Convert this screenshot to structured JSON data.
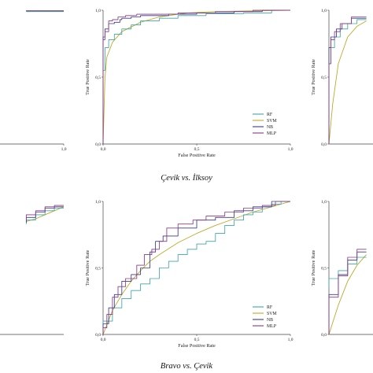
{
  "figure": {
    "captions": [
      "Çevik vs. İlksoy",
      "Bravo vs. Çevik"
    ]
  },
  "colors": {
    "RF": "#3fa6a6",
    "SVM": "#b8ad2a",
    "NB": "#3b3a8c",
    "MLP": "#8a3a86",
    "axis": "#444444"
  },
  "chart_data": [
    {
      "type": "line",
      "title": "",
      "xlabel": "False Positive Rate",
      "ylabel": "True Positive Rate",
      "xlim": [
        0,
        1
      ],
      "ylim": [
        0,
        1
      ],
      "x_ticks": [
        "0,0",
        "0,5",
        "1,0"
      ],
      "y_ticks": [
        "0,0",
        "0,5",
        "1,0"
      ],
      "legend": [
        "RF",
        "SVM",
        "NB",
        "MLP"
      ],
      "series": [
        {
          "name": "RF",
          "points": [
            [
              0,
              0
            ],
            [
              0.01,
              0.55
            ],
            [
              0.03,
              0.72
            ],
            [
              0.06,
              0.78
            ],
            [
              0.1,
              0.82
            ],
            [
              0.15,
              0.86
            ],
            [
              0.2,
              0.89
            ],
            [
              0.3,
              0.92
            ],
            [
              0.4,
              0.94
            ],
            [
              0.55,
              0.96
            ],
            [
              0.75,
              0.975
            ],
            [
              0.9,
              0.98
            ],
            [
              0.93,
              1.0
            ],
            [
              1,
              1
            ]
          ]
        },
        {
          "name": "SVM",
          "points": [
            [
              0,
              0
            ],
            [
              0.01,
              0.5
            ],
            [
              0.02,
              0.65
            ],
            [
              0.05,
              0.76
            ],
            [
              0.1,
              0.84
            ],
            [
              0.2,
              0.91
            ],
            [
              0.3,
              0.95
            ],
            [
              0.45,
              0.98
            ],
            [
              0.6,
              0.99
            ],
            [
              1,
              1
            ]
          ]
        },
        {
          "name": "NB",
          "points": [
            [
              0,
              0
            ],
            [
              0.01,
              0.8
            ],
            [
              0.03,
              0.86
            ],
            [
              0.06,
              0.9
            ],
            [
              0.09,
              0.91
            ],
            [
              0.1,
              0.93
            ],
            [
              0.15,
              0.94
            ],
            [
              0.2,
              0.95
            ],
            [
              0.35,
              0.96
            ],
            [
              0.5,
              0.97
            ],
            [
              0.7,
              0.98
            ],
            [
              0.85,
              0.99
            ],
            [
              1,
              1
            ]
          ]
        },
        {
          "name": "MLP",
          "points": [
            [
              0,
              0
            ],
            [
              0.01,
              0.78
            ],
            [
              0.03,
              0.84
            ],
            [
              0.05,
              0.92
            ],
            [
              0.08,
              0.93
            ],
            [
              0.12,
              0.95
            ],
            [
              0.18,
              0.96
            ],
            [
              0.25,
              0.97
            ],
            [
              0.4,
              0.97
            ],
            [
              0.6,
              0.98
            ],
            [
              0.8,
              0.99
            ],
            [
              1,
              1
            ]
          ]
        }
      ]
    },
    {
      "type": "line",
      "title": "",
      "xlabel": "False Positive Rate",
      "ylabel": "True Positive Rate",
      "xlim": [
        0,
        1
      ],
      "ylim": [
        0,
        1
      ],
      "x_ticks": [
        "0,0",
        "0,5",
        "1,0"
      ],
      "y_ticks": [
        "0,0",
        "0,5",
        "1,0"
      ],
      "legend": [
        "RF",
        "SVM",
        "NB",
        "MLP"
      ],
      "series": [
        {
          "name": "RF",
          "points": [
            [
              0,
              0
            ],
            [
              0.05,
              0.1
            ],
            [
              0.1,
              0.2
            ],
            [
              0.15,
              0.27
            ],
            [
              0.2,
              0.33
            ],
            [
              0.25,
              0.38
            ],
            [
              0.3,
              0.42
            ],
            [
              0.35,
              0.5
            ],
            [
              0.4,
              0.55
            ],
            [
              0.45,
              0.6
            ],
            [
              0.5,
              0.64
            ],
            [
              0.55,
              0.68
            ],
            [
              0.6,
              0.7
            ],
            [
              0.65,
              0.76
            ],
            [
              0.7,
              0.82
            ],
            [
              0.75,
              0.86
            ],
            [
              0.8,
              0.9
            ],
            [
              0.85,
              0.92
            ],
            [
              0.9,
              0.96
            ],
            [
              0.95,
              0.98
            ],
            [
              1,
              1
            ]
          ]
        },
        {
          "name": "SVM",
          "points": [
            [
              0,
              0
            ],
            [
              0.05,
              0.18
            ],
            [
              0.1,
              0.3
            ],
            [
              0.15,
              0.4
            ],
            [
              0.2,
              0.48
            ],
            [
              0.25,
              0.55
            ],
            [
              0.3,
              0.6
            ],
            [
              0.4,
              0.69
            ],
            [
              0.5,
              0.76
            ],
            [
              0.6,
              0.82
            ],
            [
              0.7,
              0.87
            ],
            [
              0.8,
              0.92
            ],
            [
              0.9,
              0.96
            ],
            [
              1,
              1
            ]
          ]
        },
        {
          "name": "NB",
          "points": [
            [
              0,
              0
            ],
            [
              0.03,
              0.08
            ],
            [
              0.06,
              0.2
            ],
            [
              0.1,
              0.3
            ],
            [
              0.15,
              0.4
            ],
            [
              0.2,
              0.45
            ],
            [
              0.25,
              0.5
            ],
            [
              0.28,
              0.62
            ],
            [
              0.32,
              0.7
            ],
            [
              0.4,
              0.74
            ],
            [
              0.5,
              0.8
            ],
            [
              0.6,
              0.86
            ],
            [
              0.7,
              0.88
            ],
            [
              0.8,
              0.93
            ],
            [
              0.9,
              0.96
            ],
            [
              1,
              1
            ]
          ]
        },
        {
          "name": "MLP",
          "points": [
            [
              0,
              0
            ],
            [
              0.02,
              0.05
            ],
            [
              0.05,
              0.15
            ],
            [
              0.08,
              0.28
            ],
            [
              0.12,
              0.36
            ],
            [
              0.18,
              0.42
            ],
            [
              0.22,
              0.52
            ],
            [
              0.26,
              0.6
            ],
            [
              0.3,
              0.64
            ],
            [
              0.34,
              0.7
            ],
            [
              0.4,
              0.8
            ],
            [
              0.48,
              0.83
            ],
            [
              0.55,
              0.86
            ],
            [
              0.65,
              0.89
            ],
            [
              0.75,
              0.92
            ],
            [
              0.85,
              0.95
            ],
            [
              0.92,
              0.97
            ],
            [
              1,
              1
            ]
          ]
        }
      ]
    },
    {
      "type": "line",
      "xlabel": "",
      "ylabel": "True Positive Rate",
      "xlim": [
        0,
        1
      ],
      "ylim": [
        0,
        1
      ],
      "y_ticks": [
        "0,0",
        "0,5",
        "1,0"
      ],
      "series": [
        {
          "name": "RF",
          "points": [
            [
              0,
              0
            ],
            [
              0.01,
              0.6
            ],
            [
              0.03,
              0.72
            ],
            [
              0.06,
              0.8
            ],
            [
              0.1,
              0.86
            ],
            [
              0.15,
              0.9
            ],
            [
              0.2,
              0.93
            ]
          ]
        },
        {
          "name": "SVM",
          "points": [
            [
              0,
              0
            ],
            [
              0.02,
              0.3
            ],
            [
              0.05,
              0.6
            ],
            [
              0.1,
              0.8
            ],
            [
              0.15,
              0.88
            ],
            [
              0.2,
              0.92
            ]
          ]
        },
        {
          "name": "NB",
          "points": [
            [
              0,
              0
            ],
            [
              0.01,
              0.72
            ],
            [
              0.04,
              0.8
            ],
            [
              0.07,
              0.86
            ],
            [
              0.12,
              0.9
            ],
            [
              0.2,
              0.94
            ]
          ]
        },
        {
          "name": "MLP",
          "points": [
            [
              0,
              0
            ],
            [
              0.01,
              0.6
            ],
            [
              0.03,
              0.78
            ],
            [
              0.06,
              0.84
            ],
            [
              0.12,
              0.9
            ],
            [
              0.2,
              0.95
            ]
          ]
        }
      ]
    },
    {
      "type": "line",
      "xlabel": "",
      "ylabel": "True Positive Rate",
      "xlim": [
        0,
        1
      ],
      "ylim": [
        0,
        1
      ],
      "y_ticks": [
        "0,0",
        "0,5",
        "1,0"
      ],
      "series": [
        {
          "name": "RF",
          "points": [
            [
              0,
              0.35
            ],
            [
              0.05,
              0.42
            ],
            [
              0.1,
              0.48
            ],
            [
              0.15,
              0.53
            ],
            [
              0.2,
              0.58
            ]
          ]
        },
        {
          "name": "SVM",
          "points": [
            [
              0,
              0
            ],
            [
              0.05,
              0.22
            ],
            [
              0.1,
              0.4
            ],
            [
              0.15,
              0.52
            ],
            [
              0.2,
              0.6
            ]
          ]
        },
        {
          "name": "NB",
          "points": [
            [
              0,
              0
            ],
            [
              0.05,
              0.3
            ],
            [
              0.1,
              0.45
            ],
            [
              0.15,
              0.56
            ],
            [
              0.2,
              0.62
            ]
          ]
        },
        {
          "name": "MLP",
          "points": [
            [
              0,
              0
            ],
            [
              0.05,
              0.28
            ],
            [
              0.1,
              0.44
            ],
            [
              0.15,
              0.58
            ],
            [
              0.2,
              0.64
            ]
          ]
        }
      ]
    },
    {
      "type": "line",
      "xlabel": "",
      "ylabel": "",
      "xlim": [
        0,
        1
      ],
      "ylim": [
        0,
        1
      ],
      "x_ticks": [
        "1,0"
      ],
      "series": [
        {
          "name": "RF",
          "points": [
            [
              0.8,
              0.988
            ],
            [
              0.9,
              0.99
            ],
            [
              1,
              0.99
            ]
          ]
        },
        {
          "name": "SVM",
          "points": [
            [
              0.8,
              0.99
            ],
            [
              0.9,
              0.992
            ],
            [
              1,
              0.992
            ]
          ]
        },
        {
          "name": "NB",
          "points": [
            [
              0.8,
              0.995
            ],
            [
              0.9,
              0.996
            ],
            [
              1,
              0.996
            ]
          ]
        },
        {
          "name": "MLP",
          "points": [
            [
              0.8,
              0.994
            ],
            [
              0.9,
              0.995
            ],
            [
              1,
              0.995
            ]
          ]
        }
      ]
    },
    {
      "type": "line",
      "xlabel": "",
      "ylabel": "",
      "xlim": [
        0,
        1
      ],
      "ylim": [
        0,
        1
      ],
      "series": [
        {
          "name": "RF",
          "points": [
            [
              0.8,
              0.83
            ],
            [
              0.85,
              0.86
            ],
            [
              0.9,
              0.9
            ],
            [
              0.95,
              0.93
            ],
            [
              1,
              0.95
            ]
          ]
        },
        {
          "name": "SVM",
          "points": [
            [
              0.8,
              0.85
            ],
            [
              0.85,
              0.87
            ],
            [
              0.9,
              0.9
            ],
            [
              0.95,
              0.93
            ],
            [
              1,
              0.96
            ]
          ]
        },
        {
          "name": "NB",
          "points": [
            [
              0.8,
              0.84
            ],
            [
              0.85,
              0.88
            ],
            [
              0.9,
              0.92
            ],
            [
              0.95,
              0.95
            ],
            [
              1,
              0.96
            ]
          ]
        },
        {
          "name": "MLP",
          "points": [
            [
              0.8,
              0.86
            ],
            [
              0.85,
              0.9
            ],
            [
              0.9,
              0.93
            ],
            [
              0.95,
              0.96
            ],
            [
              1,
              0.97
            ]
          ]
        }
      ]
    }
  ]
}
